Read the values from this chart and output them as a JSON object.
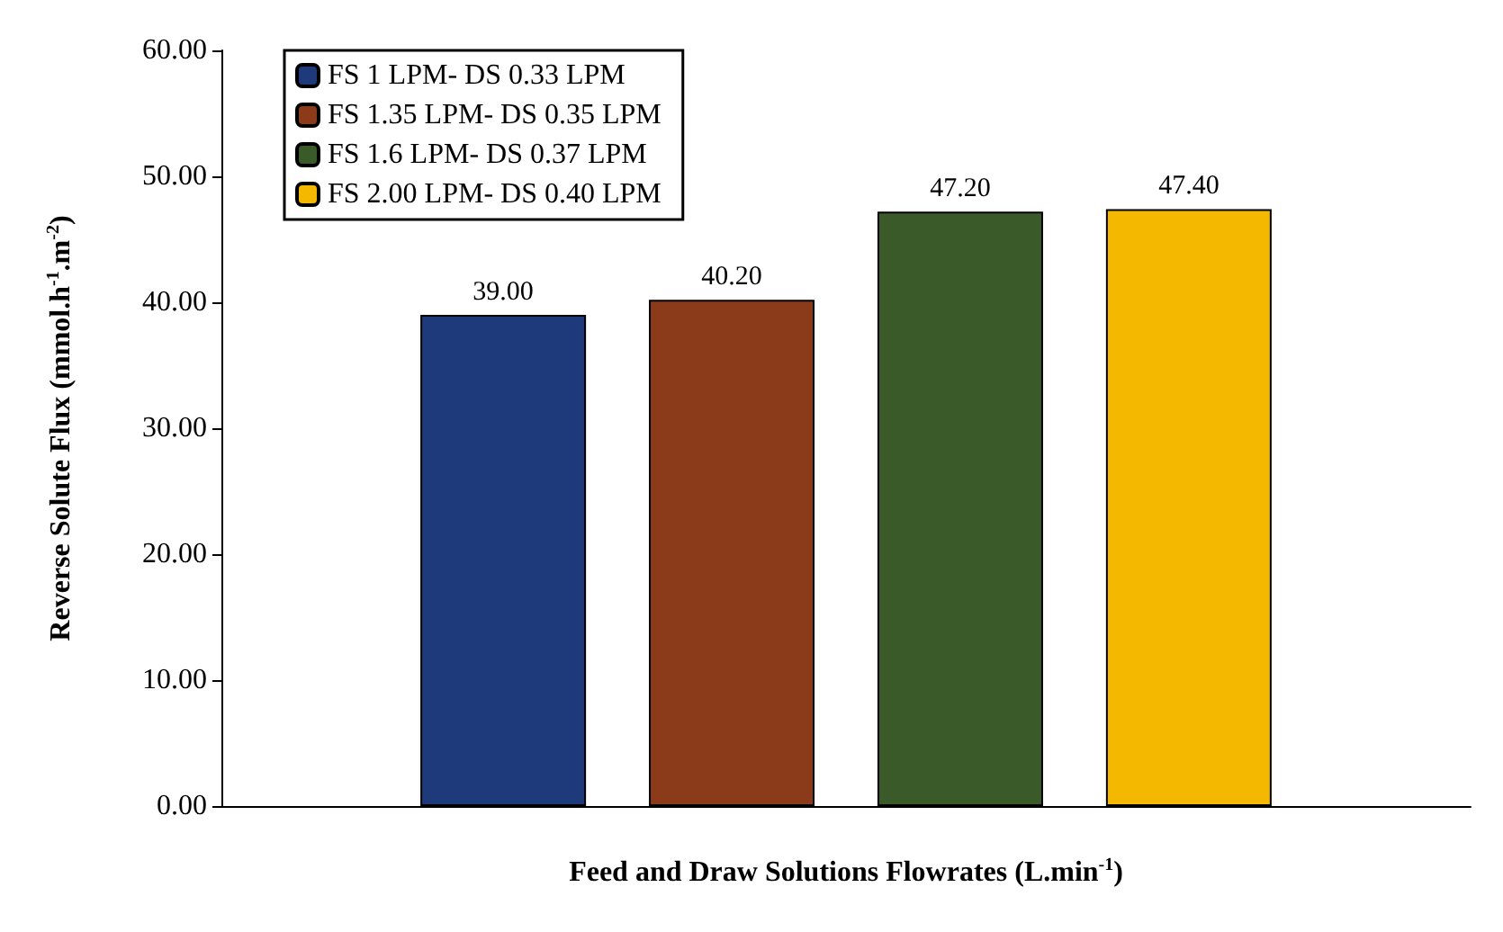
{
  "chart_data": {
    "type": "bar",
    "xlabel": "Feed and Draw Solutions Flowrates (L.min$^{-1}$)",
    "ylabel": "Reverse Solute Flux (mmol.h$^{-1}$.m$^{-2}$)",
    "categories": [
      null
    ],
    "series": [
      {
        "name": "FS 1 LPM- DS 0.33 LPM",
        "color": "#1f3a7a",
        "values": [
          39.0
        ],
        "value_labels": [
          "39.00"
        ]
      },
      {
        "name": "FS 1.35 LPM- DS 0.35 LPM",
        "color": "#8b3a1a",
        "values": [
          40.2
        ],
        "value_labels": [
          "40.20"
        ]
      },
      {
        "name": "FS 1.6 LPM- DS 0.37 LPM",
        "color": "#3b5a2a",
        "values": [
          47.2
        ],
        "value_labels": [
          "47.20"
        ]
      },
      {
        "name": "FS 2.00 LPM- DS 0.40 LPM",
        "color": "#f5b800",
        "values": [
          47.4
        ],
        "value_labels": [
          "47.40"
        ]
      }
    ],
    "ylim": [
      0,
      60
    ],
    "yticks": [
      {
        "value": 0,
        "label": "0.00"
      },
      {
        "value": 10,
        "label": "10.00"
      },
      {
        "value": 20,
        "label": "20.00"
      },
      {
        "value": 30,
        "label": "30.00"
      },
      {
        "value": 40,
        "label": "40.00"
      },
      {
        "value": 50,
        "label": "50.00"
      },
      {
        "value": 60,
        "label": "60.00"
      }
    ],
    "grid": false,
    "legend": "top left"
  }
}
